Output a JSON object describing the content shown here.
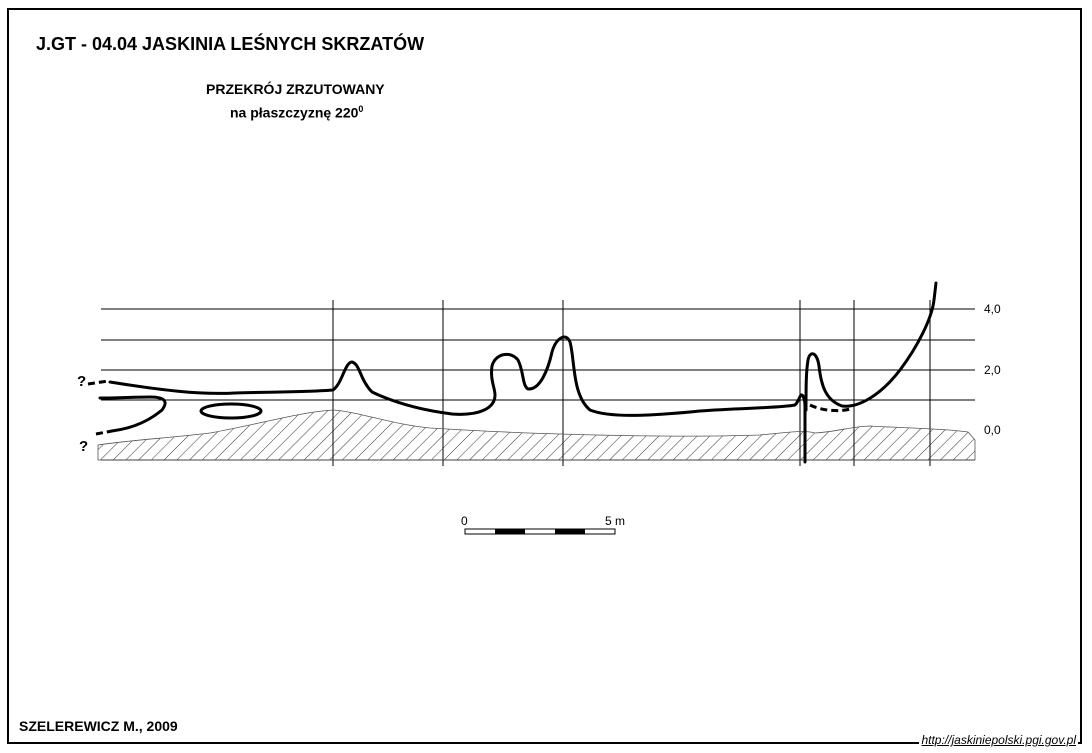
{
  "title": "J.GT - 04.04  JASKINIA LEŚNYCH SKRZATÓW",
  "subtitle": {
    "line1": "PRZEKRÓJ ZRZUTOWANY",
    "line2": "na płaszczyznę 220",
    "line2_sup": "0"
  },
  "elevation_labels": [
    "4,0",
    "2,0",
    "0,0"
  ],
  "question_marks": [
    "?",
    "?"
  ],
  "scale_bar": {
    "start_label": "0",
    "end_label": "5 m"
  },
  "author": "SZELEREWICZ M., 2009",
  "website": "http://jaskiniepolski.pgi.gov.pl"
}
